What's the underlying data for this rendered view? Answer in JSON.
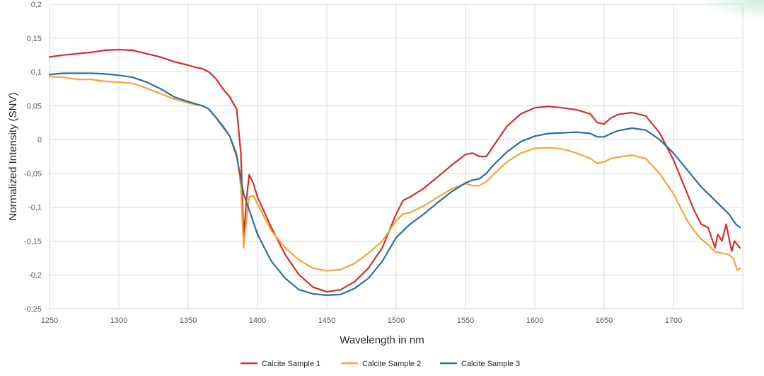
{
  "chart_data": {
    "type": "line",
    "title": "",
    "xlabel": "Wavelength in nm",
    "ylabel": "Normalized Intensity (SNV)",
    "xlim": [
      1250,
      1750
    ],
    "ylim": [
      -0.25,
      0.2
    ],
    "grid": true,
    "legend_position": "bottom",
    "x_ticks": [
      1250,
      1300,
      1350,
      1400,
      1450,
      1500,
      1550,
      1600,
      1650,
      1700
    ],
    "x_tick_labels": [
      "1250",
      "1300",
      "1350",
      "1400",
      "1450",
      "1500",
      "1550",
      "1600",
      "1650",
      "1700"
    ],
    "y_ticks": [
      0.2,
      0.15,
      0.1,
      0.05,
      0,
      -0.05,
      -0.1,
      -0.15,
      -0.2,
      -0.25
    ],
    "y_tick_labels": [
      "0,2",
      "0,15",
      "0,1",
      "0,05",
      "0",
      "-0,05",
      "-0,1",
      "-0,15",
      "-0,2",
      "-0,25"
    ],
    "series": [
      {
        "name": "Calcite Sample 1",
        "color": "#d32f2f",
        "points": [
          [
            1250,
            0.122
          ],
          [
            1260,
            0.125
          ],
          [
            1270,
            0.127
          ],
          [
            1280,
            0.129
          ],
          [
            1290,
            0.132
          ],
          [
            1300,
            0.133
          ],
          [
            1310,
            0.132
          ],
          [
            1320,
            0.127
          ],
          [
            1330,
            0.122
          ],
          [
            1340,
            0.115
          ],
          [
            1350,
            0.11
          ],
          [
            1355,
            0.107
          ],
          [
            1360,
            0.105
          ],
          [
            1365,
            0.1
          ],
          [
            1370,
            0.09
          ],
          [
            1375,
            0.075
          ],
          [
            1380,
            0.063
          ],
          [
            1385,
            0.045
          ],
          [
            1388,
            -0.02
          ],
          [
            1390,
            -0.145
          ],
          [
            1392,
            -0.09
          ],
          [
            1394,
            -0.052
          ],
          [
            1397,
            -0.065
          ],
          [
            1400,
            -0.085
          ],
          [
            1410,
            -0.13
          ],
          [
            1420,
            -0.17
          ],
          [
            1430,
            -0.2
          ],
          [
            1440,
            -0.218
          ],
          [
            1450,
            -0.225
          ],
          [
            1460,
            -0.222
          ],
          [
            1470,
            -0.21
          ],
          [
            1480,
            -0.19
          ],
          [
            1490,
            -0.16
          ],
          [
            1500,
            -0.11
          ],
          [
            1505,
            -0.09
          ],
          [
            1510,
            -0.085
          ],
          [
            1520,
            -0.072
          ],
          [
            1530,
            -0.055
          ],
          [
            1540,
            -0.038
          ],
          [
            1550,
            -0.022
          ],
          [
            1555,
            -0.02
          ],
          [
            1560,
            -0.025
          ],
          [
            1565,
            -0.025
          ],
          [
            1570,
            -0.01
          ],
          [
            1580,
            0.02
          ],
          [
            1590,
            0.038
          ],
          [
            1600,
            0.047
          ],
          [
            1610,
            0.049
          ],
          [
            1620,
            0.047
          ],
          [
            1630,
            0.044
          ],
          [
            1640,
            0.038
          ],
          [
            1645,
            0.025
          ],
          [
            1650,
            0.023
          ],
          [
            1655,
            0.032
          ],
          [
            1660,
            0.037
          ],
          [
            1670,
            0.04
          ],
          [
            1680,
            0.035
          ],
          [
            1690,
            0.01
          ],
          [
            1700,
            -0.03
          ],
          [
            1705,
            -0.055
          ],
          [
            1710,
            -0.08
          ],
          [
            1715,
            -0.105
          ],
          [
            1720,
            -0.125
          ],
          [
            1725,
            -0.13
          ],
          [
            1730,
            -0.16
          ],
          [
            1732,
            -0.14
          ],
          [
            1735,
            -0.15
          ],
          [
            1738,
            -0.125
          ],
          [
            1742,
            -0.165
          ],
          [
            1744,
            -0.15
          ],
          [
            1748,
            -0.16
          ]
        ]
      },
      {
        "name": "Calcite Sample 2",
        "color": "#f2a633",
        "points": [
          [
            1250,
            0.093
          ],
          [
            1260,
            0.092
          ],
          [
            1270,
            0.089
          ],
          [
            1280,
            0.089
          ],
          [
            1290,
            0.086
          ],
          [
            1300,
            0.085
          ],
          [
            1310,
            0.083
          ],
          [
            1320,
            0.076
          ],
          [
            1330,
            0.068
          ],
          [
            1340,
            0.06
          ],
          [
            1350,
            0.054
          ],
          [
            1360,
            0.05
          ],
          [
            1365,
            0.045
          ],
          [
            1370,
            0.032
          ],
          [
            1375,
            0.018
          ],
          [
            1380,
            0.005
          ],
          [
            1385,
            -0.02
          ],
          [
            1388,
            -0.07
          ],
          [
            1390,
            -0.16
          ],
          [
            1392,
            -0.12
          ],
          [
            1394,
            -0.085
          ],
          [
            1397,
            -0.083
          ],
          [
            1400,
            -0.095
          ],
          [
            1410,
            -0.135
          ],
          [
            1420,
            -0.16
          ],
          [
            1430,
            -0.178
          ],
          [
            1440,
            -0.19
          ],
          [
            1450,
            -0.194
          ],
          [
            1460,
            -0.192
          ],
          [
            1470,
            -0.183
          ],
          [
            1480,
            -0.168
          ],
          [
            1490,
            -0.15
          ],
          [
            1500,
            -0.12
          ],
          [
            1505,
            -0.11
          ],
          [
            1510,
            -0.108
          ],
          [
            1520,
            -0.098
          ],
          [
            1530,
            -0.085
          ],
          [
            1540,
            -0.073
          ],
          [
            1550,
            -0.065
          ],
          [
            1555,
            -0.068
          ],
          [
            1560,
            -0.068
          ],
          [
            1565,
            -0.062
          ],
          [
            1570,
            -0.052
          ],
          [
            1580,
            -0.033
          ],
          [
            1590,
            -0.02
          ],
          [
            1600,
            -0.013
          ],
          [
            1610,
            -0.012
          ],
          [
            1620,
            -0.014
          ],
          [
            1630,
            -0.02
          ],
          [
            1640,
            -0.028
          ],
          [
            1645,
            -0.035
          ],
          [
            1650,
            -0.033
          ],
          [
            1655,
            -0.028
          ],
          [
            1660,
            -0.026
          ],
          [
            1670,
            -0.023
          ],
          [
            1680,
            -0.028
          ],
          [
            1690,
            -0.05
          ],
          [
            1700,
            -0.08
          ],
          [
            1705,
            -0.1
          ],
          [
            1710,
            -0.12
          ],
          [
            1715,
            -0.135
          ],
          [
            1720,
            -0.147
          ],
          [
            1725,
            -0.155
          ],
          [
            1730,
            -0.166
          ],
          [
            1735,
            -0.168
          ],
          [
            1740,
            -0.17
          ],
          [
            1743,
            -0.175
          ],
          [
            1746,
            -0.193
          ],
          [
            1748,
            -0.19
          ]
        ]
      },
      {
        "name": "Calcite Sample 3",
        "color": "#2e6ca4",
        "points": [
          [
            1250,
            0.096
          ],
          [
            1260,
            0.098
          ],
          [
            1270,
            0.098
          ],
          [
            1280,
            0.098
          ],
          [
            1290,
            0.097
          ],
          [
            1300,
            0.095
          ],
          [
            1310,
            0.092
          ],
          [
            1320,
            0.085
          ],
          [
            1330,
            0.075
          ],
          [
            1340,
            0.063
          ],
          [
            1350,
            0.056
          ],
          [
            1360,
            0.05
          ],
          [
            1365,
            0.045
          ],
          [
            1370,
            0.033
          ],
          [
            1375,
            0.02
          ],
          [
            1380,
            0.005
          ],
          [
            1385,
            -0.025
          ],
          [
            1390,
            -0.08
          ],
          [
            1395,
            -0.11
          ],
          [
            1400,
            -0.14
          ],
          [
            1410,
            -0.18
          ],
          [
            1420,
            -0.205
          ],
          [
            1430,
            -0.222
          ],
          [
            1440,
            -0.228
          ],
          [
            1450,
            -0.23
          ],
          [
            1460,
            -0.229
          ],
          [
            1470,
            -0.22
          ],
          [
            1480,
            -0.205
          ],
          [
            1490,
            -0.18
          ],
          [
            1500,
            -0.145
          ],
          [
            1510,
            -0.125
          ],
          [
            1520,
            -0.11
          ],
          [
            1530,
            -0.093
          ],
          [
            1540,
            -0.077
          ],
          [
            1550,
            -0.064
          ],
          [
            1555,
            -0.06
          ],
          [
            1560,
            -0.058
          ],
          [
            1565,
            -0.05
          ],
          [
            1570,
            -0.038
          ],
          [
            1580,
            -0.018
          ],
          [
            1590,
            -0.003
          ],
          [
            1600,
            0.005
          ],
          [
            1610,
            0.009
          ],
          [
            1620,
            0.01
          ],
          [
            1630,
            0.011
          ],
          [
            1640,
            0.009
          ],
          [
            1645,
            0.004
          ],
          [
            1650,
            0.004
          ],
          [
            1655,
            0.009
          ],
          [
            1660,
            0.013
          ],
          [
            1670,
            0.017
          ],
          [
            1680,
            0.014
          ],
          [
            1690,
            0.0
          ],
          [
            1700,
            -0.02
          ],
          [
            1710,
            -0.045
          ],
          [
            1720,
            -0.07
          ],
          [
            1730,
            -0.09
          ],
          [
            1735,
            -0.1
          ],
          [
            1740,
            -0.11
          ],
          [
            1745,
            -0.125
          ],
          [
            1748,
            -0.13
          ]
        ]
      }
    ]
  }
}
